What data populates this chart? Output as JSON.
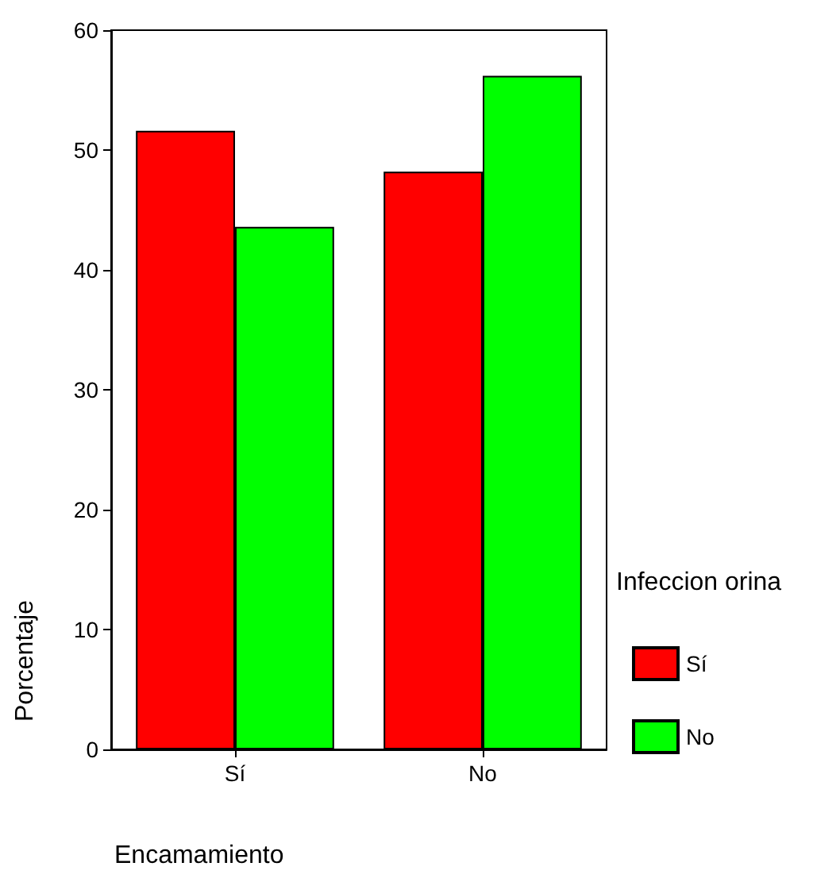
{
  "chart_data": {
    "type": "bar",
    "xlabel": "Encamamiento",
    "ylabel": "Porcentaje",
    "legend_title": "Infeccion orina",
    "categories": [
      "Sí",
      "No"
    ],
    "series": [
      {
        "name": "Sí",
        "color": "#ff0000",
        "values": [
          51.6,
          48.2
        ]
      },
      {
        "name": "No",
        "color": "#00ff00",
        "values": [
          43.6,
          56.2
        ]
      }
    ],
    "ylim": [
      0,
      60
    ],
    "yticks": [
      0,
      10,
      20,
      30,
      40,
      50,
      60
    ],
    "grid": false,
    "legend": "right"
  }
}
